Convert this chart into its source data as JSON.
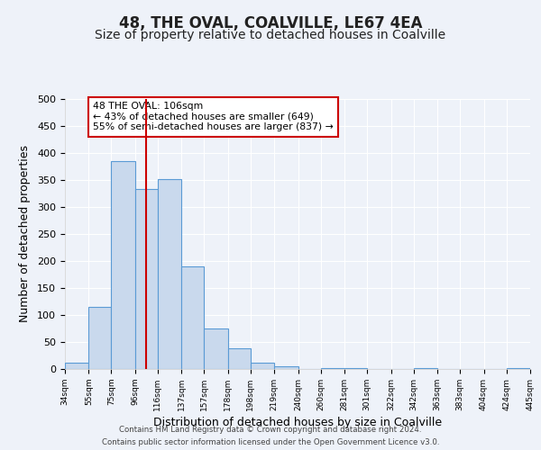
{
  "title": "48, THE OVAL, COALVILLE, LE67 4EA",
  "subtitle": "Size of property relative to detached houses in Coalville",
  "xlabel": "Distribution of detached houses by size in Coalville",
  "ylabel": "Number of detached properties",
  "bar_edges": [
    34,
    55,
    75,
    96,
    116,
    137,
    157,
    178,
    198,
    219,
    240,
    260,
    281,
    301,
    322,
    342,
    363,
    383,
    404,
    424,
    445
  ],
  "bar_heights": [
    12,
    115,
    385,
    333,
    352,
    190,
    75,
    38,
    12,
    5,
    0,
    2,
    1,
    0,
    0,
    1,
    0,
    0,
    0,
    2
  ],
  "bar_color": "#c9d9ed",
  "bar_edge_color": "#5b9bd5",
  "property_size": 106,
  "vline_color": "#cc0000",
  "annotation_line1": "48 THE OVAL: 106sqm",
  "annotation_line2": "← 43% of detached houses are smaller (649)",
  "annotation_line3": "55% of semi-detached houses are larger (837) →",
  "annotation_box_color": "#ffffff",
  "annotation_box_edge_color": "#cc0000",
  "ylim": [
    0,
    500
  ],
  "xlim": [
    34,
    445
  ],
  "tick_labels": [
    "34sqm",
    "55sqm",
    "75sqm",
    "96sqm",
    "116sqm",
    "137sqm",
    "157sqm",
    "178sqm",
    "198sqm",
    "219sqm",
    "240sqm",
    "260sqm",
    "281sqm",
    "301sqm",
    "322sqm",
    "342sqm",
    "363sqm",
    "383sqm",
    "404sqm",
    "424sqm",
    "445sqm"
  ],
  "footer_line1": "Contains HM Land Registry data © Crown copyright and database right 2024.",
  "footer_line2": "Contains public sector information licensed under the Open Government Licence v3.0.",
  "background_color": "#eef2f9",
  "grid_color": "#ffffff",
  "title_fontsize": 12,
  "subtitle_fontsize": 10,
  "axis_label_fontsize": 9,
  "yticks": [
    0,
    50,
    100,
    150,
    200,
    250,
    300,
    350,
    400,
    450,
    500
  ]
}
